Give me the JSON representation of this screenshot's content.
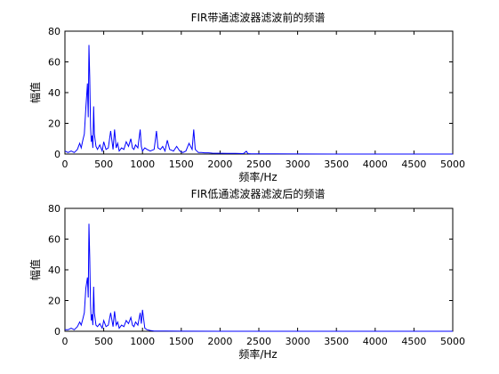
{
  "chart_data": [
    {
      "type": "line",
      "title": "FIR带通滤波器滤波前的频谱",
      "xlabel": "频率/Hz",
      "ylabel": "幅值",
      "xlim": [
        0,
        5000
      ],
      "ylim": [
        0,
        80
      ],
      "xticks": [
        "0",
        "500",
        "1000",
        "1500",
        "2000",
        "2500",
        "3000",
        "3500",
        "4000",
        "4500",
        "5000"
      ],
      "yticks": [
        "0",
        "20",
        "40",
        "60",
        "80"
      ],
      "grid": false,
      "line_color": "#0000ff",
      "series": [
        {
          "x": [
            0,
            40,
            80,
            120,
            160,
            190,
            210,
            230,
            250,
            270,
            290,
            300,
            310,
            320,
            330,
            340,
            350,
            360,
            370,
            380,
            400,
            420,
            450,
            480,
            500,
            530,
            560,
            590,
            620,
            640,
            660,
            680,
            700,
            730,
            760,
            790,
            820,
            850,
            870,
            890,
            910,
            940,
            970,
            985,
            1000,
            1030,
            1060,
            1100,
            1150,
            1180,
            1200,
            1230,
            1260,
            1290,
            1320,
            1350,
            1400,
            1440,
            1480,
            1520,
            1560,
            1600,
            1640,
            1660,
            1680,
            1720,
            1760,
            1800,
            1850,
            1900,
            1950,
            2000,
            2100,
            2200,
            2300,
            2340,
            2360,
            2400,
            2500,
            2700,
            3000,
            3500,
            4000,
            4500,
            5000
          ],
          "y": [
            2,
            1,
            2,
            1,
            3,
            7,
            4,
            9,
            13,
            30,
            46,
            24,
            71,
            50,
            18,
            8,
            12,
            4,
            31,
            13,
            5,
            3,
            6,
            2,
            8,
            3,
            4,
            15,
            3,
            16,
            4,
            7,
            2,
            4,
            3,
            8,
            5,
            10,
            4,
            3,
            6,
            4,
            16,
            5,
            2,
            4,
            3,
            2,
            3,
            15,
            4,
            3,
            5,
            2,
            9,
            3,
            2,
            5,
            2,
            1,
            2,
            7,
            3,
            16,
            3,
            1,
            1,
            0.8,
            0.8,
            0.6,
            0.5,
            0.5,
            0.4,
            0.4,
            0.3,
            1.8,
            0.3,
            0.2,
            0.1,
            0.1,
            0.05,
            0,
            0,
            0,
            0
          ]
        }
      ]
    },
    {
      "type": "line",
      "title": "FIR低通滤波器滤波后的频谱",
      "xlabel": "频率/Hz",
      "ylabel": "幅值",
      "xlim": [
        0,
        5000
      ],
      "ylim": [
        0,
        80
      ],
      "xticks": [
        "0",
        "500",
        "1000",
        "1500",
        "2000",
        "2500",
        "3000",
        "3500",
        "4000",
        "4500",
        "5000"
      ],
      "yticks": [
        "0",
        "20",
        "40",
        "60",
        "80"
      ],
      "grid": false,
      "line_color": "#0000ff",
      "series": [
        {
          "x": [
            0,
            40,
            80,
            120,
            160,
            190,
            210,
            230,
            250,
            270,
            290,
            300,
            310,
            320,
            330,
            340,
            350,
            360,
            370,
            380,
            400,
            420,
            450,
            480,
            500,
            530,
            560,
            590,
            620,
            640,
            660,
            680,
            700,
            730,
            760,
            790,
            820,
            850,
            870,
            890,
            910,
            940,
            970,
            985,
            1000,
            1030,
            1060,
            1100,
            1150,
            1300,
            1500,
            2000,
            3000,
            4000,
            5000
          ],
          "y": [
            1,
            1,
            2,
            1,
            3,
            6,
            4,
            8,
            12,
            28,
            35,
            22,
            70,
            48,
            17,
            7,
            11,
            4,
            29,
            12,
            4,
            3,
            5,
            2,
            7,
            3,
            4,
            12,
            3,
            13,
            4,
            6,
            2,
            4,
            3,
            7,
            5,
            9,
            4,
            3,
            6,
            4,
            12,
            5,
            14,
            2,
            1,
            0.5,
            0.2,
            0.1,
            0.05,
            0,
            0,
            0,
            0
          ]
        }
      ]
    }
  ]
}
